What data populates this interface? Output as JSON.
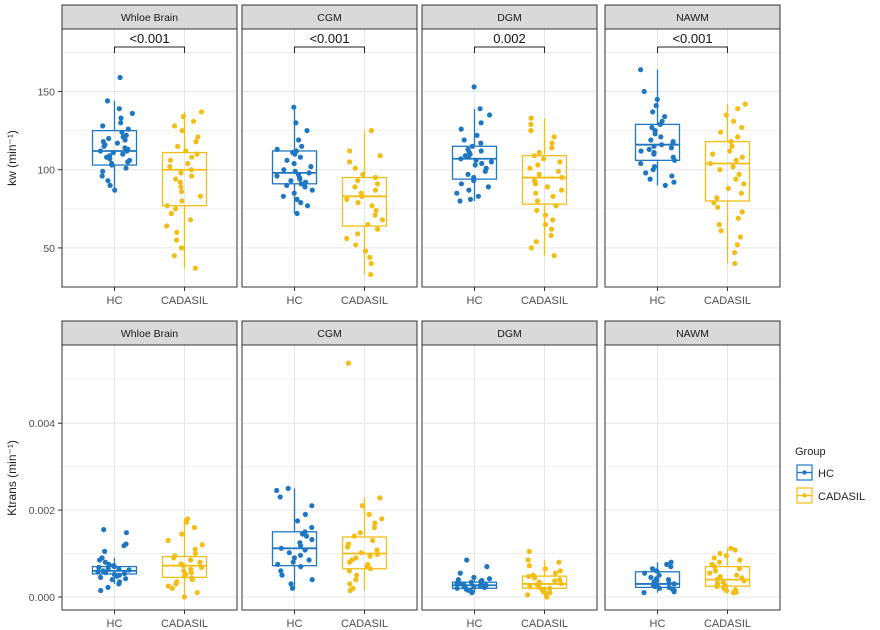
{
  "colors": {
    "hc": "#1f77c2",
    "cadasil": "#f2bd14",
    "panel_bg": "#ffffff",
    "grid": "#e6e6e6",
    "strip_bg": "#d9d9d9",
    "border": "#333333",
    "axis_text": "#4d4d4d"
  },
  "legend": {
    "title": "Group",
    "items": [
      "HC",
      "CADASIL"
    ]
  },
  "chart_data": [
    {
      "type": "boxplot",
      "row": "top",
      "ylabel": "kw (min⁻¹)",
      "ylim": [
        25,
        190
      ],
      "yticks": [
        50,
        100,
        150
      ],
      "ytick_labels": [
        "50",
        "100",
        "150"
      ],
      "categories": [
        "HC",
        "CADASIL"
      ],
      "panels": [
        {
          "title": "Whloe Brain",
          "significance": "<0.001",
          "boxes": [
            {
              "group": "HC",
              "whisker_low": 87,
              "q1": 103,
              "median": 112,
              "q3": 125,
              "whisker_high": 144,
              "points": [
                159,
                144,
                139,
                136,
                133,
                130,
                128,
                126,
                124,
                122,
                121,
                120,
                119,
                118,
                117,
                116,
                115,
                114,
                113,
                112,
                112,
                111,
                110,
                109,
                108,
                107,
                106,
                105,
                104,
                103,
                101,
                99,
                96,
                93,
                90,
                87
              ]
            },
            {
              "group": "CADASIL",
              "whisker_low": 37,
              "q1": 77,
              "median": 100,
              "q3": 111,
              "whisker_high": 137,
              "points": [
                137,
                134,
                131,
                128,
                125,
                121,
                118,
                115,
                112,
                110,
                108,
                106,
                104,
                102,
                100,
                98,
                96,
                94,
                92,
                89,
                86,
                83,
                80,
                77,
                75,
                72,
                68,
                64,
                60,
                55,
                50,
                45,
                37
              ]
            }
          ]
        },
        {
          "title": "CGM",
          "significance": "<0.001",
          "boxes": [
            {
              "group": "HC",
              "whisker_low": 72,
              "q1": 91,
              "median": 98,
              "q3": 112,
              "whisker_high": 140,
              "points": [
                140,
                130,
                125,
                119,
                115,
                113,
                112,
                111,
                110,
                108,
                106,
                104,
                102,
                100,
                99,
                98,
                97,
                96,
                95,
                94,
                93,
                92,
                91,
                90,
                89,
                87,
                85,
                83,
                81,
                79,
                77,
                72
              ]
            },
            {
              "group": "CADASIL",
              "whisker_low": 33,
              "q1": 64,
              "median": 83,
              "q3": 95,
              "whisker_high": 125,
              "points": [
                125,
                112,
                109,
                105,
                101,
                97,
                95,
                93,
                91,
                89,
                87,
                85,
                83,
                81,
                79,
                77,
                74,
                71,
                68,
                65,
                62,
                59,
                56,
                52,
                48,
                44,
                40,
                33
              ]
            }
          ]
        },
        {
          "title": "DGM",
          "significance": "0.002",
          "boxes": [
            {
              "group": "HC",
              "whisker_low": 80,
              "q1": 94,
              "median": 107,
              "q3": 115,
              "whisker_high": 139,
              "points": [
                153,
                139,
                135,
                130,
                126,
                122,
                119,
                117,
                115,
                113,
                112,
                111,
                110,
                109,
                108,
                107,
                106,
                105,
                104,
                103,
                101,
                99,
                97,
                95,
                93,
                91,
                89,
                87,
                85,
                83,
                81,
                80
              ]
            },
            {
              "group": "CADASIL",
              "whisker_low": 45,
              "q1": 78,
              "median": 95,
              "q3": 109,
              "whisker_high": 133,
              "points": [
                133,
                129,
                125,
                121,
                117,
                114,
                111,
                109,
                107,
                105,
                103,
                101,
                99,
                97,
                95,
                93,
                91,
                89,
                87,
                85,
                83,
                80,
                77,
                74,
                71,
                68,
                65,
                62,
                58,
                54,
                50,
                45
              ]
            }
          ]
        },
        {
          "title": "NAWM",
          "significance": "<0.001",
          "boxes": [
            {
              "group": "HC",
              "whisker_low": 90,
              "q1": 106,
              "median": 116,
              "q3": 129,
              "whisker_high": 164,
              "points": [
                164,
                150,
                145,
                141,
                137,
                134,
                131,
                129,
                127,
                125,
                123,
                121,
                119,
                118,
                117,
                116,
                115,
                114,
                113,
                112,
                111,
                110,
                108,
                106,
                104,
                102,
                100,
                98,
                96,
                94,
                92,
                90
              ]
            },
            {
              "group": "CADASIL",
              "whisker_low": 40,
              "q1": 80,
              "median": 104,
              "q3": 118,
              "whisker_high": 142,
              "points": [
                142,
                139,
                135,
                131,
                127,
                124,
                121,
                118,
                115,
                112,
                110,
                108,
                106,
                104,
                102,
                100,
                97,
                94,
                91,
                88,
                85,
                82,
                79,
                76,
                73,
                69,
                65,
                61,
                57,
                52,
                47,
                40
              ]
            }
          ]
        }
      ]
    },
    {
      "type": "boxplot",
      "row": "bottom",
      "ylabel": "Ktrans (min⁻¹)",
      "ylim": [
        -0.0003,
        0.0058
      ],
      "yticks": [
        0.0,
        0.002,
        0.004
      ],
      "ytick_labels": [
        "0.000",
        "0.002",
        "0.004"
      ],
      "categories": [
        "HC",
        "CADASIL"
      ],
      "panels": [
        {
          "title": "Whloe Brain",
          "boxes": [
            {
              "group": "HC",
              "whisker_low": 0.0003,
              "q1": 0.00053,
              "median": 0.0006,
              "q3": 0.0007,
              "whisker_high": 0.0009,
              "points": [
                0.00155,
                0.00148,
                0.00122,
                0.00118,
                0.00105,
                0.0009,
                0.00085,
                0.0008,
                0.00075,
                0.00072,
                0.0007,
                0.00068,
                0.00066,
                0.00064,
                0.00062,
                0.0006,
                0.00058,
                0.00056,
                0.00054,
                0.00052,
                0.0005,
                0.00048,
                0.00045,
                0.00042,
                0.0004,
                0.00035,
                0.0003,
                0.00022,
                0.00015
              ]
            },
            {
              "group": "CADASIL",
              "whisker_low": 0.0,
              "q1": 0.00045,
              "median": 0.00072,
              "q3": 0.00093,
              "whisker_high": 0.0018,
              "points": [
                0.0018,
                0.00172,
                0.0016,
                0.00145,
                0.0013,
                0.0012,
                0.0011,
                0.001,
                0.00095,
                0.0009,
                0.00085,
                0.0008,
                0.00076,
                0.00072,
                0.00068,
                0.00064,
                0.0006,
                0.00056,
                0.00052,
                0.00048,
                0.00044,
                0.0004,
                0.00035,
                0.0003,
                0.00025,
                0.0002,
                0.0001,
                0.0
              ]
            }
          ]
        },
        {
          "title": "CGM",
          "boxes": [
            {
              "group": "HC",
              "whisker_low": 0.0002,
              "q1": 0.00072,
              "median": 0.00112,
              "q3": 0.0015,
              "whisker_high": 0.0025,
              "points": [
                0.0025,
                0.00245,
                0.0023,
                0.0021,
                0.0019,
                0.00175,
                0.0016,
                0.0015,
                0.00145,
                0.0014,
                0.00132,
                0.00125,
                0.00118,
                0.00112,
                0.00108,
                0.00102,
                0.00096,
                0.0009,
                0.00085,
                0.0008,
                0.00075,
                0.0007,
                0.0006,
                0.0005,
                0.0004,
                0.0003,
                0.0002
              ]
            },
            {
              "group": "CADASIL",
              "whisker_low": 0.00015,
              "q1": 0.00065,
              "median": 0.001,
              "q3": 0.00138,
              "whisker_high": 0.00228,
              "points": [
                0.00538,
                0.00228,
                0.0021,
                0.0019,
                0.0018,
                0.0017,
                0.0016,
                0.00148,
                0.0014,
                0.0013,
                0.00122,
                0.00115,
                0.00108,
                0.00102,
                0.00098,
                0.00094,
                0.0009,
                0.00085,
                0.0008,
                0.00075,
                0.0007,
                0.00065,
                0.0006,
                0.0005,
                0.0004,
                0.0003,
                0.0002,
                0.00015
              ]
            }
          ]
        },
        {
          "title": "DGM",
          "boxes": [
            {
              "group": "HC",
              "whisker_low": 0.0001,
              "q1": 0.0002,
              "median": 0.00027,
              "q3": 0.00034,
              "whisker_high": 0.00045,
              "points": [
                0.00085,
                0.0007,
                0.00055,
                0.00045,
                0.00042,
                0.0004,
                0.00038,
                0.00036,
                0.00034,
                0.00032,
                0.0003,
                0.00029,
                0.00028,
                0.00027,
                0.00026,
                0.00025,
                0.00024,
                0.00023,
                0.00022,
                0.0002,
                0.00018,
                0.00016,
                0.00014,
                0.00012,
                0.0001
              ]
            },
            {
              "group": "CADASIL",
              "whisker_low": 0.0,
              "q1": 0.0002,
              "median": 0.0003,
              "q3": 0.00048,
              "whisker_high": 0.00085,
              "points": [
                0.00105,
                0.00085,
                0.0008,
                0.00072,
                0.00065,
                0.0006,
                0.00055,
                0.0005,
                0.00047,
                0.00044,
                0.0004,
                0.00037,
                0.00034,
                0.00031,
                0.00028,
                0.00025,
                0.00022,
                0.0002,
                0.00018,
                0.00015,
                0.00012,
                0.0001,
                8e-05,
                5e-05,
                0.0
              ]
            }
          ]
        },
        {
          "title": "NAWM",
          "boxes": [
            {
              "group": "HC",
              "whisker_low": 0.0001,
              "q1": 0.00022,
              "median": 0.0003,
              "q3": 0.00058,
              "whisker_high": 0.0008,
              "points": [
                0.0008,
                0.00075,
                0.0007,
                0.00065,
                0.0006,
                0.00055,
                0.0005,
                0.00045,
                0.00042,
                0.0004,
                0.00038,
                0.00035,
                0.00032,
                0.0003,
                0.00028,
                0.00026,
                0.00024,
                0.00022,
                0.0002,
                0.00018,
                0.00015,
                0.00012,
                0.0001
              ]
            },
            {
              "group": "CADASIL",
              "whisker_low": 0.0001,
              "q1": 0.00025,
              "median": 0.0004,
              "q3": 0.0007,
              "whisker_high": 0.00112,
              "points": [
                0.00112,
                0.00108,
                0.001,
                0.00095,
                0.0009,
                0.00085,
                0.0008,
                0.00075,
                0.0007,
                0.00065,
                0.0006,
                0.00055,
                0.0005,
                0.00047,
                0.00044,
                0.0004,
                0.00037,
                0.00034,
                0.0003,
                0.00027,
                0.00024,
                0.0002,
                0.00017,
                0.00014,
                0.00011,
                0.0001
              ]
            }
          ]
        }
      ]
    }
  ]
}
